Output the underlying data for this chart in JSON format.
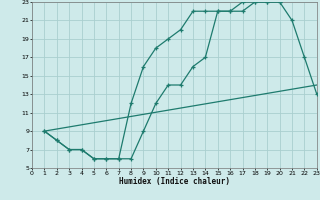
{
  "xlabel": "Humidex (Indice chaleur)",
  "xlim": [
    0,
    23
  ],
  "ylim": [
    5,
    23
  ],
  "xticks": [
    0,
    1,
    2,
    3,
    4,
    5,
    6,
    7,
    8,
    9,
    10,
    11,
    12,
    13,
    14,
    15,
    16,
    17,
    18,
    19,
    20,
    21,
    22,
    23
  ],
  "yticks": [
    5,
    7,
    9,
    11,
    13,
    15,
    17,
    19,
    21,
    23
  ],
  "background_color": "#ceeaea",
  "grid_color": "#aacfcf",
  "line_color": "#1e7b6e",
  "curve1_x": [
    1,
    2,
    3,
    4,
    5,
    6,
    7,
    8,
    9,
    10,
    11,
    12,
    13,
    14,
    15,
    16,
    17,
    18,
    19,
    20,
    21,
    22,
    23
  ],
  "curve1_y": [
    9,
    8,
    7,
    7,
    6,
    6,
    6,
    6,
    9,
    12,
    14,
    14,
    16,
    17,
    22,
    22,
    22,
    23,
    23,
    23,
    21,
    17,
    13
  ],
  "curve2_x": [
    1,
    2,
    3,
    4,
    5,
    6,
    7,
    8,
    9,
    10,
    11,
    12,
    13,
    14,
    15,
    16,
    17,
    18,
    19,
    20
  ],
  "curve2_y": [
    9,
    8,
    7,
    7,
    6,
    6,
    6,
    12,
    16,
    18,
    19,
    20,
    22,
    22,
    22,
    22,
    23,
    23,
    23,
    23
  ],
  "curve3_x": [
    1,
    23
  ],
  "curve3_y": [
    9,
    14
  ]
}
